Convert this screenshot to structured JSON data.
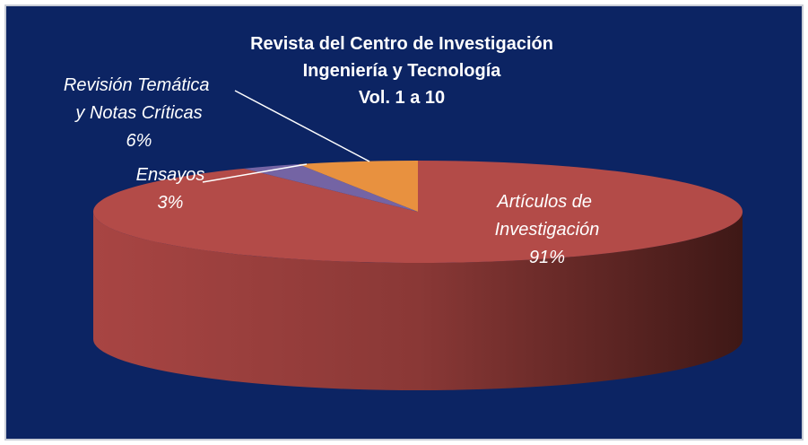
{
  "chart_data": {
    "type": "pie",
    "title": [
      "Revista del Centro de Investigación",
      "Ingeniería y Tecnología",
      "Vol. 1 a 10"
    ],
    "categories": [
      "Artículos de Investigación",
      "Ensayos",
      "Revisión Temática y Notas Críticas"
    ],
    "values": [
      91,
      3,
      6
    ],
    "value_labels": [
      "91%",
      "3%",
      "6%"
    ],
    "colors": [
      "#b34b48",
      "#7464a4",
      "#e8913f"
    ]
  }
}
